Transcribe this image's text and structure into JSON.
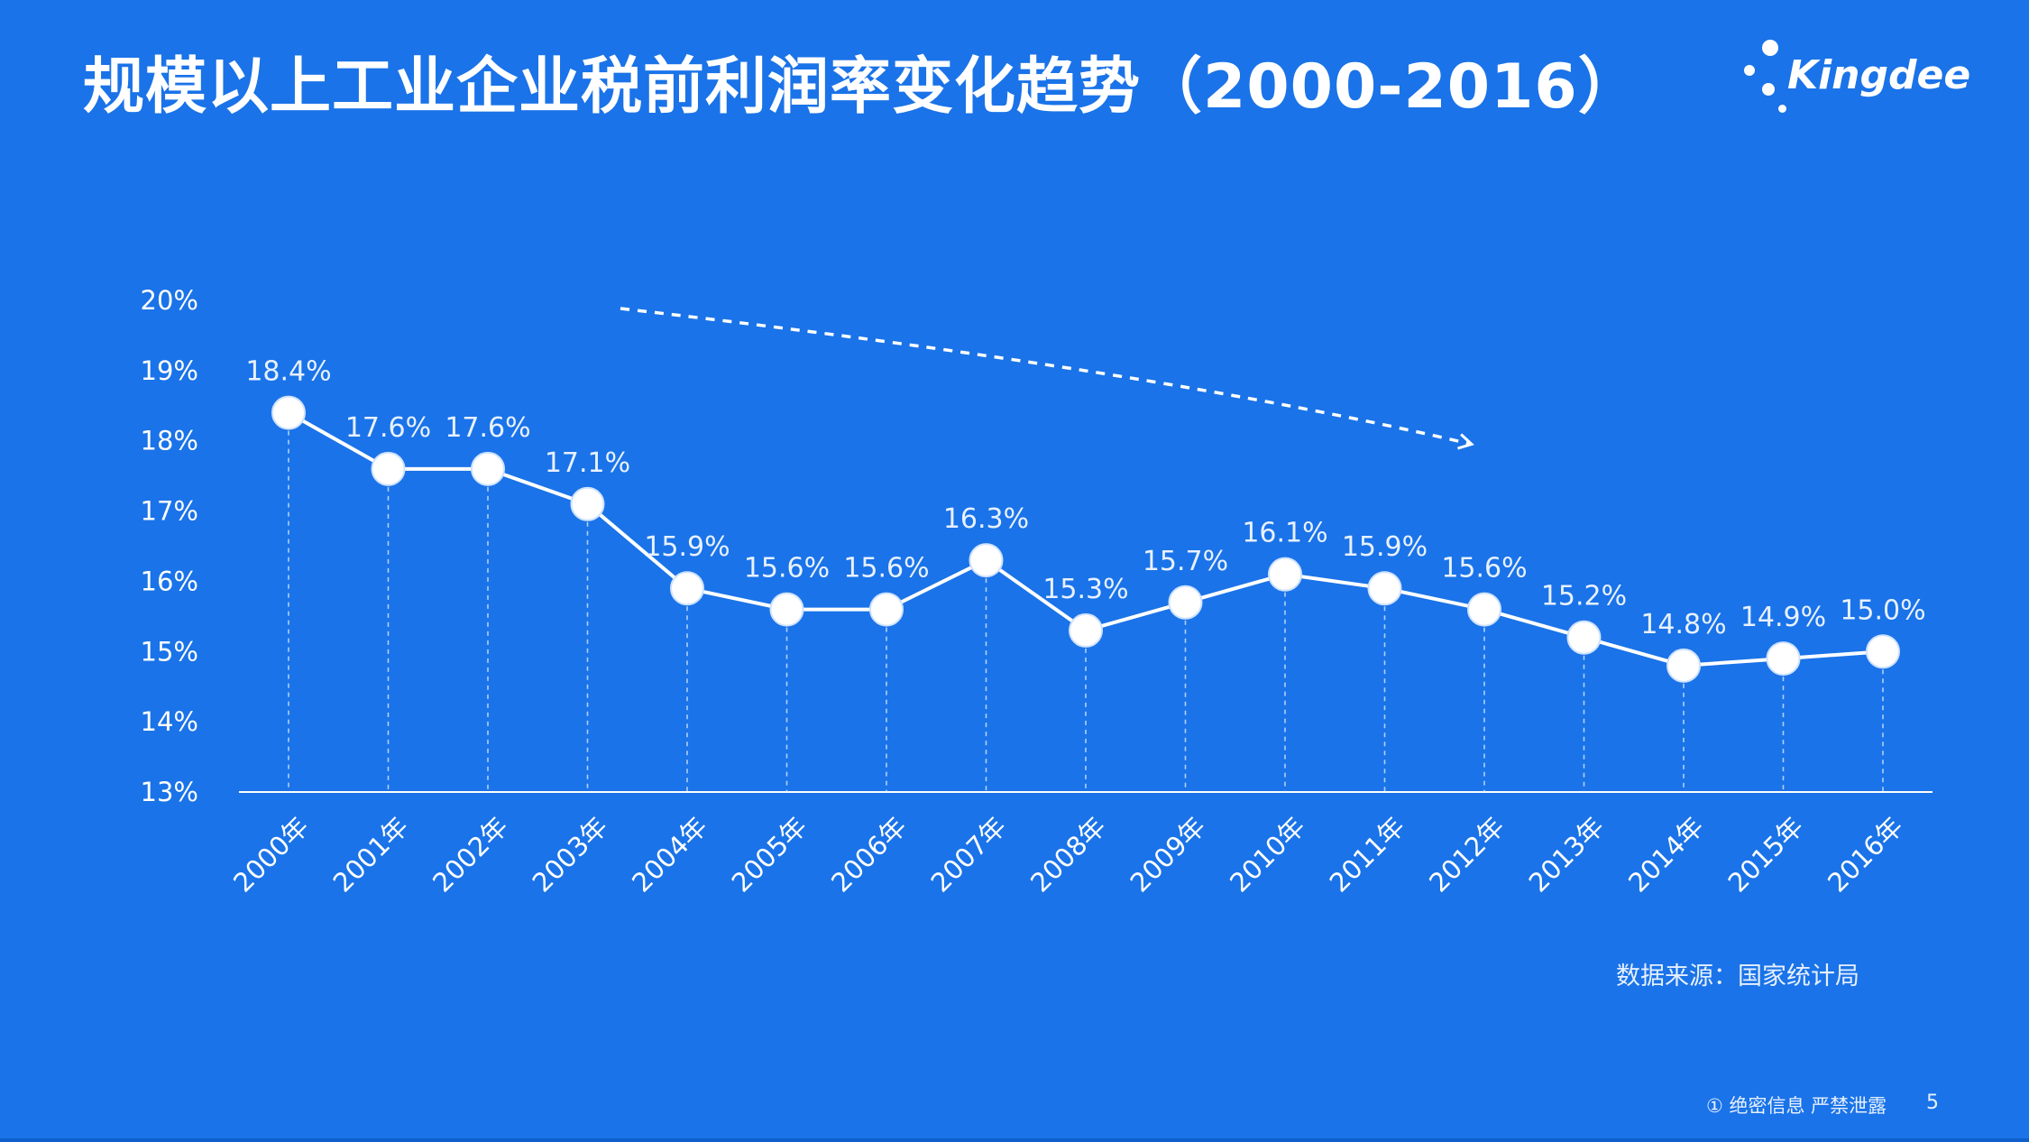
{
  "title": "规模以上工业企业税前利润率变化趋势（2000-2016）",
  "logo": {
    "text": "Kingdee"
  },
  "source": "数据来源：国家统计局",
  "footer": {
    "confidential": "① 绝密信息 严禁泄露",
    "page_number": "5"
  },
  "colors": {
    "background": "#1a73e8",
    "line": "#ffffff",
    "text": "#ffffff"
  },
  "chart_data": {
    "type": "line",
    "categories": [
      "2000年",
      "2001年",
      "2002年",
      "2003年",
      "2004年",
      "2005年",
      "2006年",
      "2007年",
      "2008年",
      "2009年",
      "2010年",
      "2011年",
      "2012年",
      "2013年",
      "2014年",
      "2015年",
      "2016年"
    ],
    "values": [
      18.4,
      17.6,
      17.6,
      17.1,
      15.9,
      15.6,
      15.6,
      16.3,
      15.3,
      15.7,
      16.1,
      15.9,
      15.6,
      15.2,
      14.8,
      14.9,
      15.0
    ],
    "data_labels": [
      "18.4%",
      "17.6%",
      "17.6%",
      "17.1%",
      "15.9%",
      "15.6%",
      "15.6%",
      "16.3%",
      "15.3%",
      "15.7%",
      "16.1%",
      "15.9%",
      "15.6%",
      "15.2%",
      "14.8%",
      "14.9%",
      "15.0%"
    ],
    "yticks": [
      "13%",
      "14%",
      "15%",
      "16%",
      "17%",
      "18%",
      "19%",
      "20%"
    ],
    "ylim": [
      13,
      20
    ],
    "grid": false,
    "trend_arrow": "dashed, pointing down-right"
  }
}
